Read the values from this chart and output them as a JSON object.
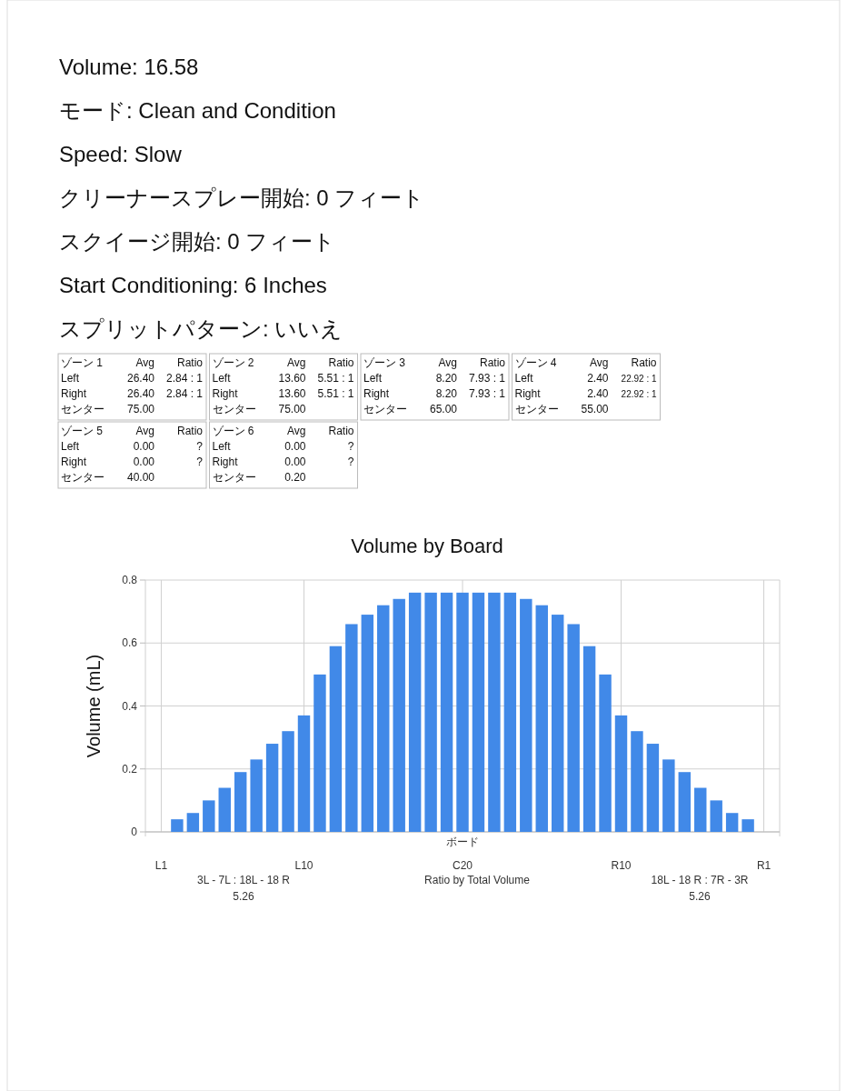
{
  "chart_data": [
    {
      "type": "other",
      "annotations": [
        "Volume: 16.58",
        "モード: Clean and Condition",
        "Speed: Slow",
        "クリーナースプレー開始: 0 フィート",
        "スクイージ開始: 0 フィート",
        "Start Conditioning: 6 Inches",
        "スプリットパターン: いいえ"
      ]
    },
    {
      "type": "other",
      "title": "ゾーン 1",
      "annotations": [
        "Avg",
        "Ratio",
        "Left",
        "26.40",
        "2.84 : 1",
        "Right",
        "26.40",
        "2.84 : 1",
        "センター",
        "75.00"
      ]
    },
    {
      "type": "other",
      "title": "ゾーン 2",
      "annotations": [
        "Avg",
        "Ratio",
        "Left",
        "13.60",
        "5.51 : 1",
        "Right",
        "13.60",
        "5.51 : 1",
        "センター",
        "75.00"
      ]
    },
    {
      "type": "other",
      "title": "ゾーン 3",
      "annotations": [
        "Avg",
        "Ratio",
        "Left",
        "8.20",
        "7.93 : 1",
        "Right",
        "8.20",
        "7.93 : 1",
        "センター",
        "65.00"
      ]
    },
    {
      "type": "other",
      "title": "ゾーン 4",
      "annotations": [
        "Avg",
        "Ratio",
        "Left",
        "2.40",
        "22.92 : 1",
        "Right",
        "2.40",
        "22.92 : 1",
        "センター",
        "55.00"
      ]
    },
    {
      "type": "other",
      "title": "ゾーン 5",
      "annotations": [
        "Avg",
        "Ratio",
        "Left",
        "0.00",
        "?",
        "Right",
        "0.00",
        "?",
        "センター",
        "40.00"
      ]
    },
    {
      "type": "other",
      "title": "ゾーン 6",
      "annotations": [
        "Avg",
        "Ratio",
        "Left",
        "0.00",
        "?",
        "Right",
        "0.00",
        "?",
        "センター",
        "0.20"
      ]
    },
    {
      "type": "bar",
      "title": "Volume by Board",
      "xlabel": "ボード",
      "ylabel": "Volume (mL)",
      "categories": [
        "L1",
        null,
        null,
        null,
        null,
        null,
        null,
        null,
        null,
        "L10",
        null,
        null,
        null,
        null,
        null,
        null,
        null,
        null,
        null,
        "C20",
        null,
        null,
        null,
        null,
        null,
        null,
        null,
        null,
        null,
        "R10",
        null,
        null,
        null,
        null,
        null,
        null,
        null,
        null,
        "R1"
      ],
      "values": [
        null,
        0.04,
        0.06,
        0.1,
        0.14,
        0.19,
        0.23,
        0.28,
        0.32,
        0.37,
        0.5,
        0.59,
        0.66,
        0.69,
        0.72,
        0.74,
        0.76,
        0.76,
        0.76,
        0.76,
        0.76,
        0.76,
        0.76,
        0.74,
        0.72,
        0.69,
        0.66,
        0.59,
        0.5,
        0.37,
        0.32,
        0.28,
        0.23,
        0.19,
        0.14,
        0.1,
        0.06,
        0.04,
        null
      ],
      "color": "#4189e8",
      "ylim": [
        0,
        0.8
      ],
      "yticks": [
        0,
        0.2,
        0.4,
        0.6,
        0.8
      ],
      "grid": true,
      "annotations": [
        "3L - 7L : 18L - 18 R",
        "5.26",
        "Ratio by Total Volume",
        "18L - 18 R : 7R - 3R",
        "5.26"
      ]
    }
  ]
}
